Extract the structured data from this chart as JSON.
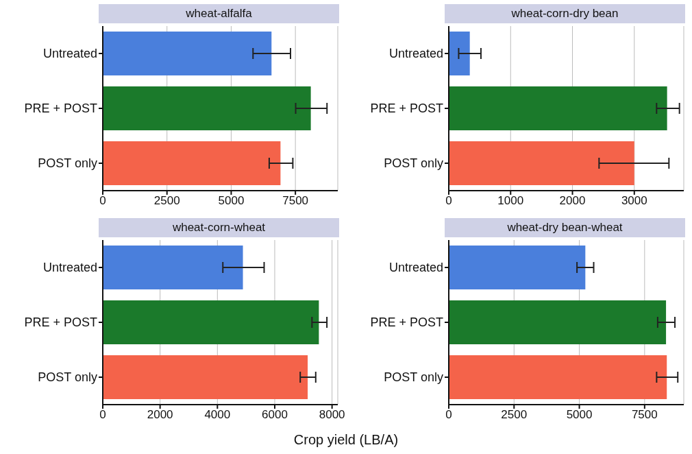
{
  "chart_data": [
    {
      "type": "bar",
      "orientation": "horizontal",
      "title": "wheat-alfalfa",
      "categories": [
        "Untreated",
        "PRE + POST",
        "POST only"
      ],
      "values": [
        6570,
        8100,
        6920
      ],
      "colors": [
        "#4a7fdc",
        "#1b7a2b",
        "#f4634a"
      ],
      "errors": [
        [
          5850,
          7310
        ],
        [
          7510,
          8730
        ],
        [
          6480,
          7400
        ]
      ],
      "xlim": [
        0,
        9150
      ],
      "xticks": [
        0,
        2500,
        5000,
        7500
      ],
      "grid": "x"
    },
    {
      "type": "bar",
      "orientation": "horizontal",
      "title": "wheat-corn-dry bean",
      "categories": [
        "Untreated",
        "PRE + POST",
        "POST only"
      ],
      "values": [
        340,
        3530,
        3000
      ],
      "colors": [
        "#4a7fdc",
        "#1b7a2b",
        "#f4634a"
      ],
      "errors": [
        [
          160,
          520
        ],
        [
          3360,
          3730
        ],
        [
          2430,
          3560
        ]
      ],
      "xlim": [
        0,
        3800
      ],
      "xticks": [
        0,
        1000,
        2000,
        3000
      ],
      "grid": "x"
    },
    {
      "type": "bar",
      "orientation": "horizontal",
      "title": "wheat-corn-wheat",
      "categories": [
        "Untreated",
        "PRE + POST",
        "POST only"
      ],
      "values": [
        4890,
        7540,
        7150
      ],
      "colors": [
        "#4a7fdc",
        "#1b7a2b",
        "#f4634a"
      ],
      "errors": [
        [
          4190,
          5630
        ],
        [
          7300,
          7820
        ],
        [
          6890,
          7430
        ]
      ],
      "xlim": [
        0,
        8200
      ],
      "xticks": [
        0,
        2000,
        4000,
        6000,
        8000
      ],
      "grid": "x",
      "xlabel": "Crop yield (LB/A)"
    },
    {
      "type": "bar",
      "orientation": "horizontal",
      "title": "wheat-dry bean-wheat",
      "categories": [
        "Untreated",
        "PRE + POST",
        "POST only"
      ],
      "values": [
        5230,
        8320,
        8350
      ],
      "colors": [
        "#4a7fdc",
        "#1b7a2b",
        "#f4634a"
      ],
      "errors": [
        [
          4910,
          5550
        ],
        [
          8000,
          8660
        ],
        [
          7960,
          8770
        ]
      ],
      "xlim": [
        0,
        9000
      ],
      "xticks": [
        0,
        2500,
        5000,
        7500
      ],
      "grid": "x"
    }
  ]
}
